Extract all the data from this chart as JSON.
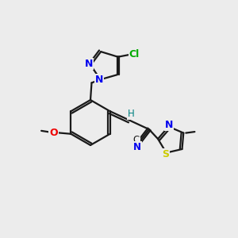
{
  "background_color": "#ececec",
  "bond_color": "#1a1a1a",
  "atom_colors": {
    "N": "#0000ee",
    "O": "#ee0000",
    "S": "#cccc00",
    "Cl": "#00aa00",
    "H": "#008080",
    "C": "#1a1a1a"
  },
  "figsize": [
    3.0,
    3.0
  ],
  "dpi": 100
}
